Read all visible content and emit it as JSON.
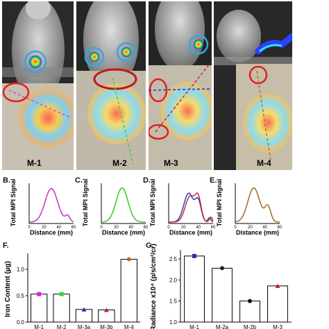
{
  "panels": {
    "m1_label": "M-1",
    "m2_label": "M-2",
    "m3_label": "M-3",
    "m4_label": "M-4"
  },
  "letters": {
    "B": "B.",
    "C": "C.",
    "D": "D.",
    "E": "E.",
    "F": "F.",
    "G": "G."
  },
  "profiles": {
    "ylabel": "Total MPI Signal",
    "xlabel": "Distance (mm)",
    "ticks": [
      "0",
      "20",
      "40",
      "60"
    ],
    "colors": {
      "B": "#c034c0",
      "C": "#3fc42c",
      "D1": "#2a3bc8",
      "D2": "#cc2b2b",
      "E": "#9a6a2e"
    }
  },
  "chart_data": [
    {
      "type": "bar",
      "panel": "F",
      "title": "",
      "xlabel": "",
      "ylabel": "Iron Content (µg)",
      "categories": [
        "M-1",
        "M-2",
        "M-3a",
        "M-3b",
        "M-4"
      ],
      "values": [
        0.53,
        0.53,
        0.24,
        0.23,
        1.19
      ],
      "marker_colors": [
        "#e020e0",
        "#40d040",
        "#2030c0",
        "#c02020",
        "#b07030"
      ],
      "ylim": [
        0,
        1.25
      ],
      "yticks": [
        "0.0",
        "0.5",
        "1.0"
      ]
    },
    {
      "type": "bar",
      "panel": "G",
      "title": "",
      "xlabel": "",
      "ylabel": "Radiance x10⁴ (p/s/cm²/cr)",
      "categories": [
        "M-1",
        "M-2a",
        "M-2b",
        "M-3"
      ],
      "values": [
        2.57,
        2.28,
        1.5,
        1.86
      ],
      "marker_colors": [
        "#2030c0",
        "#222222",
        "#111111",
        "#c02020"
      ],
      "ylim": [
        1.0,
        2.65
      ],
      "yticks": [
        "1.0",
        "1.5",
        "2.0",
        "2.5"
      ]
    }
  ]
}
